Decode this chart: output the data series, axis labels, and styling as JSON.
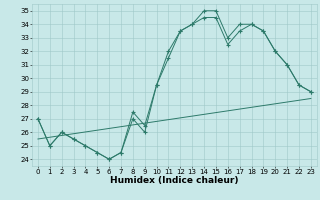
{
  "xlabel": "Humidex (Indice chaleur)",
  "ylabel": "",
  "xlim": [
    -0.5,
    23.5
  ],
  "ylim": [
    23.5,
    35.5
  ],
  "yticks": [
    24,
    25,
    26,
    27,
    28,
    29,
    30,
    31,
    32,
    33,
    34,
    35
  ],
  "xticks": [
    0,
    1,
    2,
    3,
    4,
    5,
    6,
    7,
    8,
    9,
    10,
    11,
    12,
    13,
    14,
    15,
    16,
    17,
    18,
    19,
    20,
    21,
    22,
    23
  ],
  "line_color": "#2d7a6a",
  "bg_color": "#c8e8e8",
  "grid_color": "#9fc8c8",
  "series1": {
    "x": [
      0,
      1,
      2,
      3,
      4,
      5,
      6,
      7,
      8,
      9,
      10,
      11,
      12,
      13,
      14,
      15,
      16,
      17,
      18,
      19,
      20,
      21,
      22,
      23
    ],
    "y": [
      27,
      25,
      26,
      25.5,
      25,
      24.5,
      24,
      24.5,
      27.5,
      26.5,
      29.5,
      31.5,
      33.5,
      34,
      35,
      35,
      33,
      34,
      34,
      33.5,
      32,
      31,
      29.5,
      29
    ]
  },
  "series2": {
    "x": [
      0,
      1,
      2,
      3,
      4,
      5,
      6,
      7,
      8,
      9,
      10,
      11,
      12,
      13,
      14,
      15,
      16,
      17,
      18,
      19,
      20,
      21,
      22,
      23
    ],
    "y": [
      27,
      25,
      26,
      25.5,
      25,
      24.5,
      24,
      24.5,
      27.0,
      26.0,
      29.5,
      32.0,
      33.5,
      34.0,
      34.5,
      34.5,
      32.5,
      33.5,
      34.0,
      33.5,
      32.0,
      31.0,
      29.5,
      29.0
    ]
  },
  "series3": {
    "x": [
      0,
      23
    ],
    "y": [
      25.5,
      28.5
    ]
  },
  "label_fontsize": 6,
  "tick_fontsize": 5,
  "xlabel_fontsize": 6.5
}
